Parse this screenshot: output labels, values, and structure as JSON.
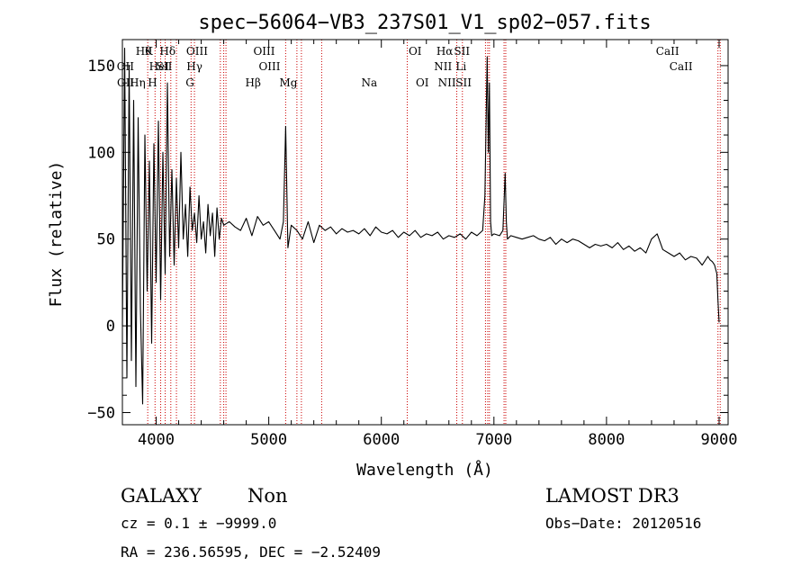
{
  "chart_data": {
    "type": "line",
    "title": "spec−56064−VB3_237S01_V1_sp02−057.fits",
    "xlabel": "Wavelength (Å)",
    "ylabel": "Flux (relative)",
    "xlim": [
      3700,
      9080
    ],
    "ylim": [
      -57,
      165
    ],
    "xticks": [
      4000,
      5000,
      6000,
      7000,
      8000,
      9000
    ],
    "yticks": [
      -50,
      0,
      50,
      100,
      150
    ],
    "grid": false,
    "series": [
      {
        "name": "flux",
        "x": [
          3700,
          3720,
          3740,
          3760,
          3780,
          3800,
          3820,
          3840,
          3860,
          3880,
          3900,
          3920,
          3940,
          3960,
          3980,
          4000,
          4020,
          4040,
          4060,
          4080,
          4100,
          4120,
          4140,
          4160,
          4180,
          4200,
          4220,
          4240,
          4260,
          4280,
          4300,
          4320,
          4340,
          4360,
          4380,
          4400,
          4420,
          4440,
          4460,
          4480,
          4500,
          4520,
          4540,
          4560,
          4580,
          4600,
          4650,
          4700,
          4750,
          4800,
          4850,
          4900,
          4950,
          5000,
          5050,
          5100,
          5130,
          5150,
          5170,
          5200,
          5250,
          5300,
          5350,
          5400,
          5450,
          5500,
          5550,
          5600,
          5650,
          5700,
          5750,
          5800,
          5850,
          5900,
          5950,
          6000,
          6050,
          6100,
          6150,
          6200,
          6250,
          6300,
          6350,
          6400,
          6450,
          6500,
          6550,
          6600,
          6650,
          6700,
          6750,
          6800,
          6850,
          6900,
          6920,
          6940,
          6950,
          6960,
          6970,
          6980,
          7000,
          7050,
          7080,
          7100,
          7110,
          7120,
          7150,
          7200,
          7250,
          7300,
          7350,
          7400,
          7450,
          7500,
          7550,
          7600,
          7650,
          7700,
          7750,
          7800,
          7850,
          7900,
          7950,
          8000,
          8050,
          8100,
          8150,
          8200,
          8250,
          8300,
          8350,
          8400,
          8450,
          8500,
          8550,
          8600,
          8650,
          8700,
          8750,
          8800,
          8850,
          8900,
          8920,
          8940,
          8960,
          8980,
          8990,
          9000
        ],
        "values": [
          0,
          160,
          -30,
          150,
          -20,
          130,
          -35,
          120,
          10,
          -45,
          110,
          20,
          95,
          -10,
          105,
          25,
          118,
          15,
          100,
          30,
          140,
          40,
          90,
          35,
          85,
          45,
          100,
          50,
          70,
          40,
          80,
          55,
          65,
          48,
          75,
          50,
          60,
          42,
          70,
          52,
          65,
          40,
          68,
          50,
          62,
          58,
          60,
          57,
          55,
          62,
          52,
          63,
          58,
          60,
          55,
          50,
          60,
          115,
          45,
          58,
          55,
          50,
          60,
          48,
          58,
          55,
          57,
          53,
          56,
          54,
          55,
          53,
          56,
          52,
          57,
          54,
          53,
          55,
          51,
          54,
          52,
          55,
          51,
          53,
          52,
          54,
          50,
          52,
          51,
          53,
          50,
          54,
          52,
          55,
          75,
          155,
          100,
          140,
          60,
          52,
          53,
          52,
          55,
          88,
          60,
          50,
          52,
          51,
          50,
          51,
          52,
          50,
          49,
          51,
          47,
          50,
          48,
          50,
          49,
          47,
          45,
          47,
          46,
          47,
          45,
          48,
          44,
          46,
          43,
          45,
          42,
          50,
          53,
          44,
          42,
          40,
          42,
          38,
          40,
          39,
          35,
          40,
          38,
          37,
          35,
          30,
          15,
          2
        ]
      }
    ],
    "lines_row1": [
      {
        "label": "Hθ",
        "x": 3889
      },
      {
        "label": "K",
        "x": 3934
      },
      {
        "label": "Hδ",
        "x": 4102
      },
      {
        "label": "OIII",
        "x": 4363
      },
      {
        "label": "OIII",
        "x": 4959
      },
      {
        "label": "OI",
        "x": 6300
      },
      {
        "label": "Hα",
        "x": 6563
      },
      {
        "label": "SII",
        "x": 6716
      },
      {
        "label": "CaII",
        "x": 8542
      }
    ],
    "lines_row2": [
      {
        "label": "OII",
        "x": 3727
      },
      {
        "label": "HeI",
        "x": 4026
      },
      {
        "label": "SII",
        "x": 4072
      },
      {
        "label": "Hγ",
        "x": 4340
      },
      {
        "label": "OIII",
        "x": 5007
      },
      {
        "label": "NII",
        "x": 6548
      },
      {
        "label": "Li",
        "x": 6708
      },
      {
        "label": "CaII",
        "x": 8662
      }
    ],
    "lines_row3": [
      {
        "label": "OII",
        "x": 3729
      },
      {
        "label": "Hη",
        "x": 3835
      },
      {
        "label": "H",
        "x": 3968
      },
      {
        "label": "G",
        "x": 4300
      },
      {
        "label": "Hβ",
        "x": 4861
      },
      {
        "label": "Mg",
        "x": 5175
      },
      {
        "label": "Na",
        "x": 5893
      },
      {
        "label": "OI",
        "x": 6364
      },
      {
        "label": "NII",
        "x": 6583
      },
      {
        "label": "SII",
        "x": 6731
      }
    ],
    "line_markers": [
      3925,
      3990,
      4040,
      4080,
      4130,
      4180,
      4310,
      4340,
      4570,
      4600,
      4620,
      5150,
      5250,
      5290,
      5470,
      6230,
      6670,
      6720,
      6925,
      6945,
      6960,
      7090,
      7105,
      8990,
      9010
    ],
    "line_color": "#cc0000"
  },
  "info": {
    "object_class": "GALAXY",
    "subclass": "Non",
    "survey": "LAMOST DR3",
    "cz": "cz = 0.1 ± −9999.0",
    "obs_date": "Obs−Date: 20120516",
    "coords": "RA = 236.56595, DEC =  −2.52409"
  }
}
